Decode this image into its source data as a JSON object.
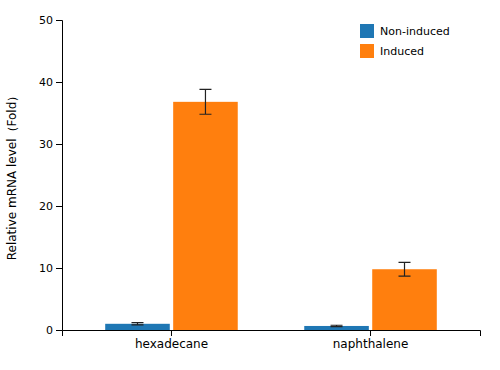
{
  "chart_data": {
    "type": "bar",
    "categories": [
      "hexadecane",
      "naphthalene"
    ],
    "series": [
      {
        "name": "Non-induced",
        "values": [
          1.0,
          0.65
        ],
        "errors": [
          0.18,
          0.12
        ]
      },
      {
        "name": "Induced",
        "values": [
          36.8,
          9.8
        ],
        "errors": [
          2.0,
          1.1
        ]
      }
    ],
    "ylabel": "Relative mRNA level（Fold）",
    "ylim": [
      0,
      50
    ],
    "yticks": [
      0,
      10,
      20,
      30,
      40,
      50
    ],
    "grid": false,
    "legend": "upper right"
  }
}
